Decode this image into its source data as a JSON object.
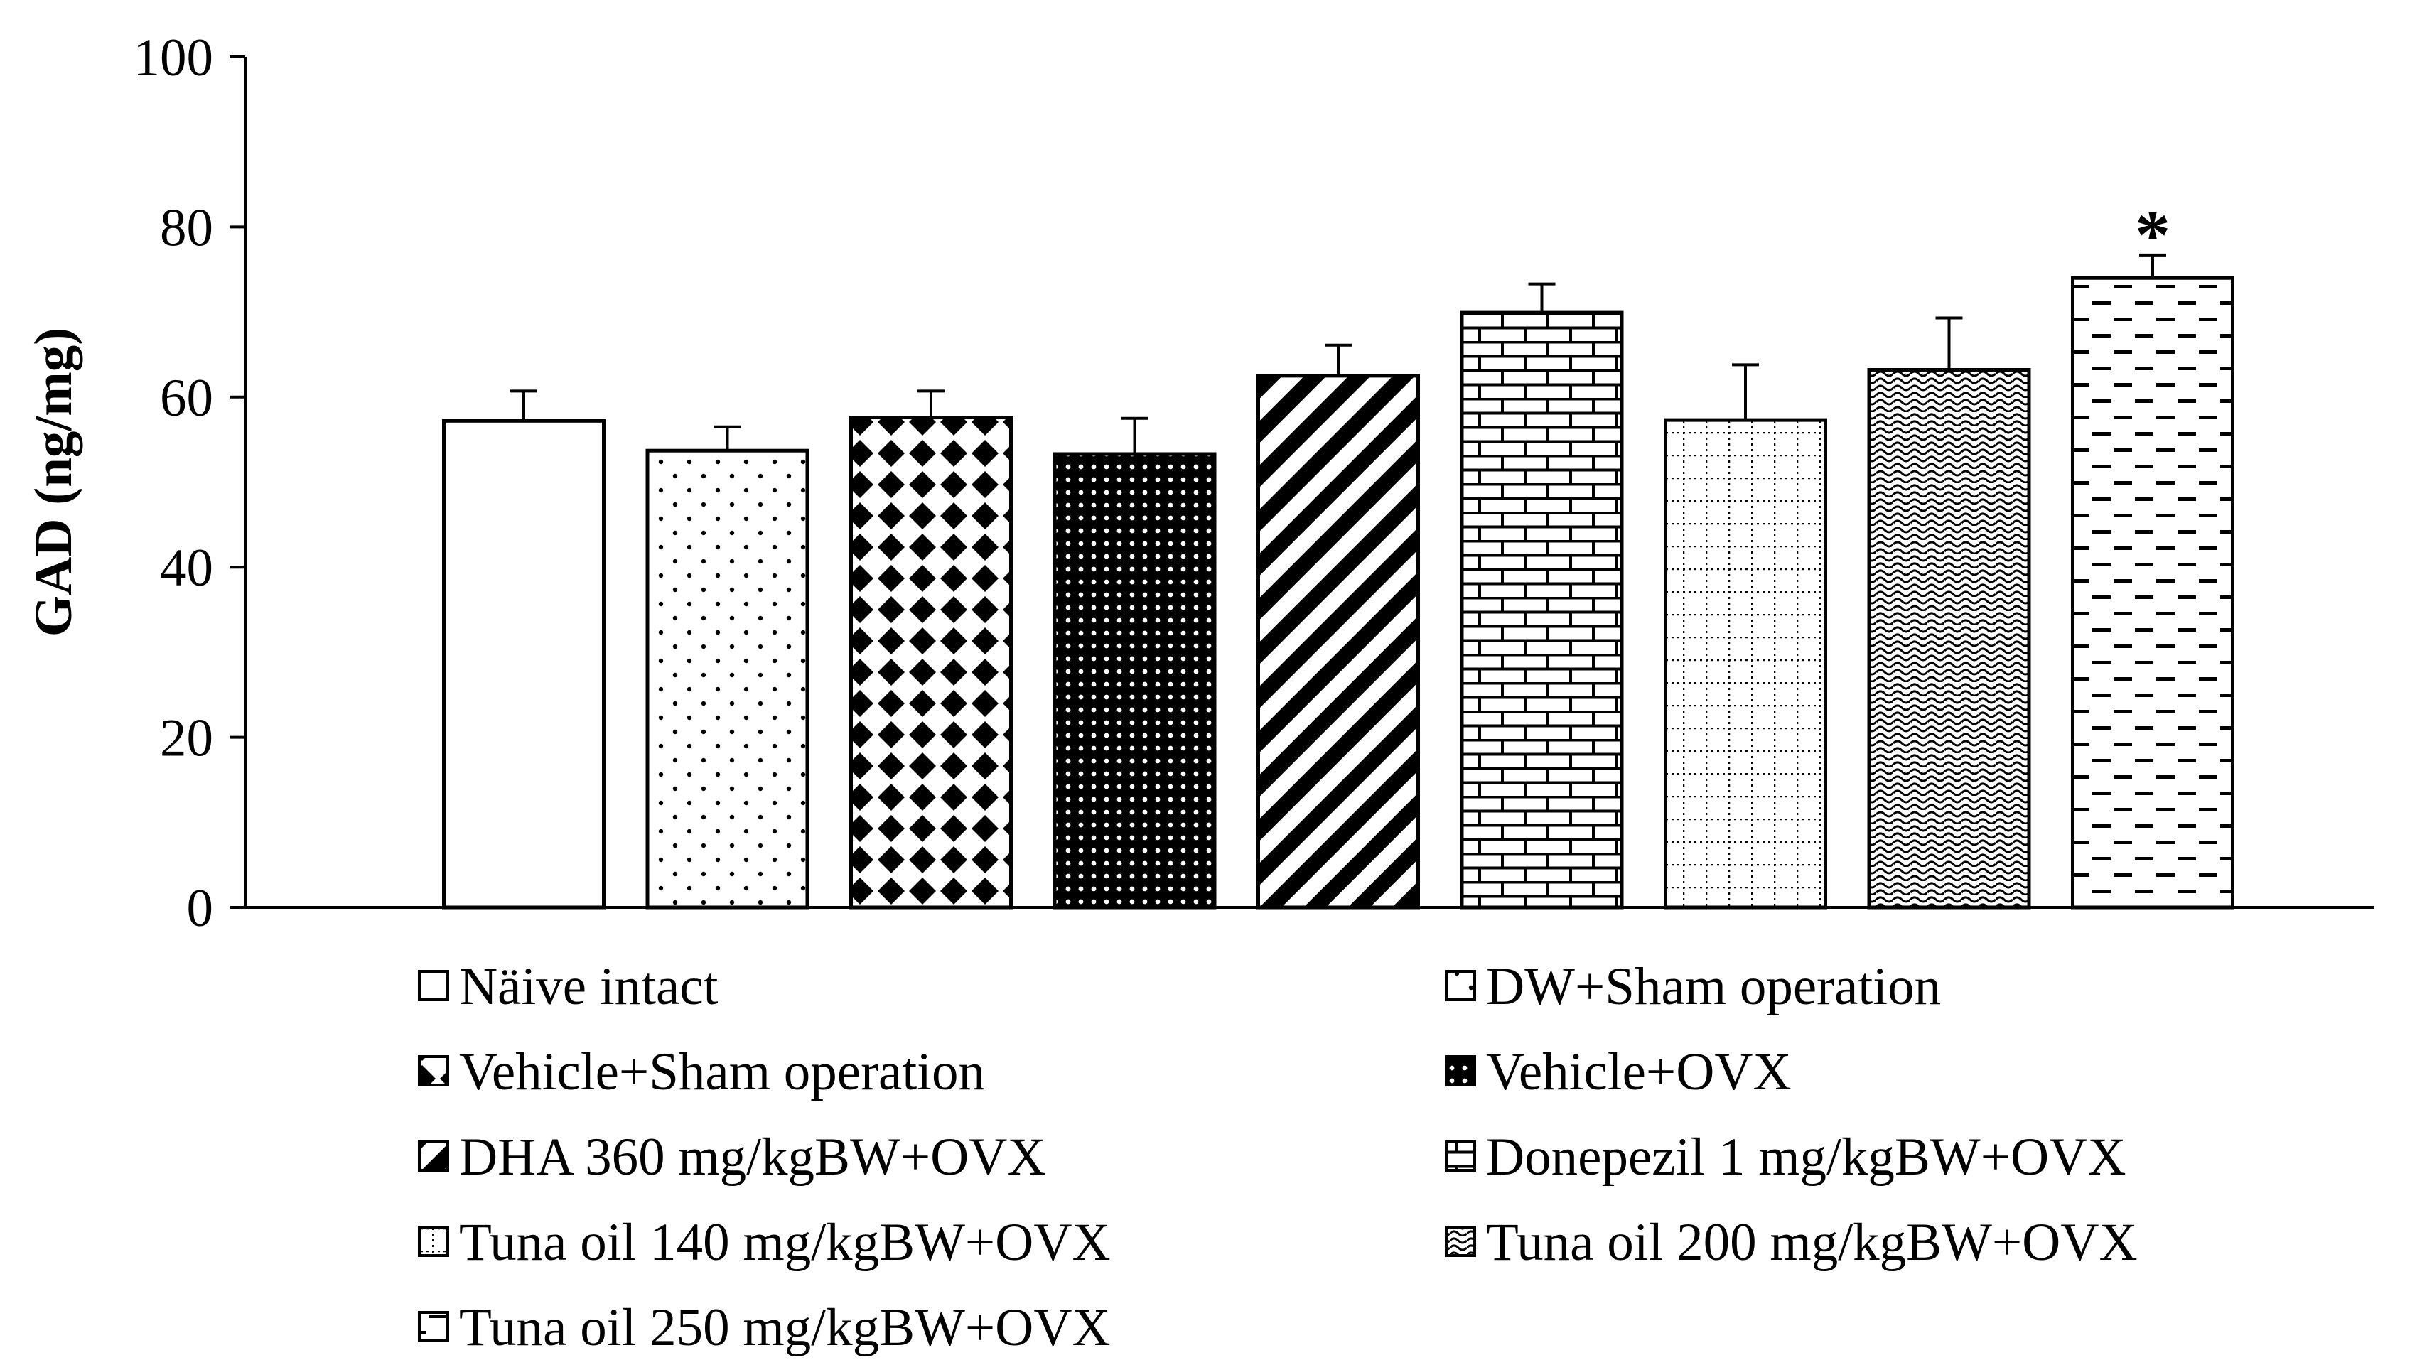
{
  "chart_data": {
    "type": "bar",
    "title": "",
    "xlabel": "",
    "ylabel": "GAD (ng/mg)",
    "ylim": [
      0,
      100
    ],
    "yticks": [
      "0",
      "20",
      "40",
      "60",
      "80",
      "100"
    ],
    "grid": false,
    "legend_position": "bottom",
    "series": [
      {
        "name": "Näive intact",
        "value": 57.2,
        "error": 3.5,
        "pattern": "solid-white"
      },
      {
        "name": "DW+Sham operation",
        "value": 53.7,
        "error": 2.8,
        "pattern": "dots"
      },
      {
        "name": "Vehicle+Sham operation",
        "value": 57.6,
        "error": 3.1,
        "pattern": "diamonds"
      },
      {
        "name": "Vehicle+OVX",
        "value": 53.3,
        "error": 4.2,
        "pattern": "dense-checker"
      },
      {
        "name": "DHA 360 mg/kgBW+OVX",
        "value": 62.5,
        "error": 3.6,
        "pattern": "diagonal-stripes"
      },
      {
        "name": "Donepezil  1 mg/kgBW+OVX",
        "value": 70.0,
        "error": 3.3,
        "pattern": "bricks"
      },
      {
        "name": "Tuna oil 140 mg/kgBW+OVX",
        "value": 57.3,
        "error": 6.5,
        "pattern": "dotted-grid"
      },
      {
        "name": "Tuna oil 200 mg/kgBW+OVX",
        "value": 63.2,
        "error": 6.1,
        "pattern": "waves"
      },
      {
        "name": "Tuna oil 250 mg/kgBW+OVX",
        "value": 74.0,
        "error": 2.7,
        "pattern": "dashes"
      }
    ],
    "annotations": [
      {
        "text": "*",
        "series_index": 8
      }
    ]
  }
}
